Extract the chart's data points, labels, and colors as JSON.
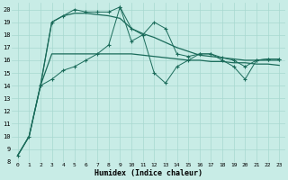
{
  "xlabel": "Humidex (Indice chaleur)",
  "bg_color": "#c8ece6",
  "grid_color": "#a8d8d0",
  "line_color": "#1a6b5a",
  "ylim": [
    8,
    20.5
  ],
  "xlim": [
    -0.5,
    23.5
  ],
  "yticks": [
    8,
    9,
    10,
    11,
    12,
    13,
    14,
    15,
    16,
    17,
    18,
    19,
    20
  ],
  "xticks": [
    0,
    1,
    2,
    3,
    4,
    5,
    6,
    7,
    8,
    9,
    10,
    11,
    12,
    13,
    14,
    15,
    16,
    17,
    18,
    19,
    20,
    21,
    22,
    23
  ],
  "series_smooth1": [
    8.5,
    10.0,
    14.0,
    19.0,
    19.5,
    19.7,
    19.7,
    19.6,
    19.5,
    19.3,
    18.5,
    18.1,
    17.8,
    17.4,
    17.0,
    16.7,
    16.4,
    16.3,
    16.2,
    16.1,
    16.0,
    16.0,
    16.0,
    16.0
  ],
  "series_smooth2": [
    8.5,
    10.0,
    14.0,
    16.5,
    16.5,
    16.5,
    16.5,
    16.5,
    16.5,
    16.5,
    16.5,
    16.4,
    16.3,
    16.2,
    16.1,
    16.0,
    16.0,
    15.9,
    15.9,
    15.8,
    15.8,
    15.7,
    15.7,
    15.6
  ],
  "series_jagged1_x": [
    2,
    3,
    4,
    5,
    6,
    7,
    8,
    9,
    10,
    11,
    12,
    13,
    14,
    15,
    16,
    17,
    18,
    19,
    20,
    21,
    22,
    23
  ],
  "series_jagged1": [
    14.0,
    19.0,
    19.5,
    20.0,
    19.8,
    19.8,
    19.8,
    20.2,
    18.5,
    18.0,
    19.0,
    18.5,
    16.5,
    16.3,
    16.5,
    16.5,
    16.2,
    16.0,
    15.5,
    16.0,
    16.1,
    16.1
  ],
  "series_jagged2_x": [
    0,
    1,
    2,
    3,
    4,
    5,
    6,
    7,
    8,
    9,
    10,
    11,
    12,
    13,
    14,
    15,
    16,
    17,
    18,
    19,
    20,
    21,
    22,
    23
  ],
  "series_jagged2": [
    8.5,
    10.0,
    14.0,
    14.5,
    15.2,
    15.5,
    16.0,
    16.5,
    17.2,
    20.2,
    17.5,
    18.0,
    15.0,
    14.2,
    15.5,
    16.0,
    16.5,
    16.5,
    16.0,
    15.5,
    14.5,
    16.0,
    16.1,
    16.1
  ]
}
